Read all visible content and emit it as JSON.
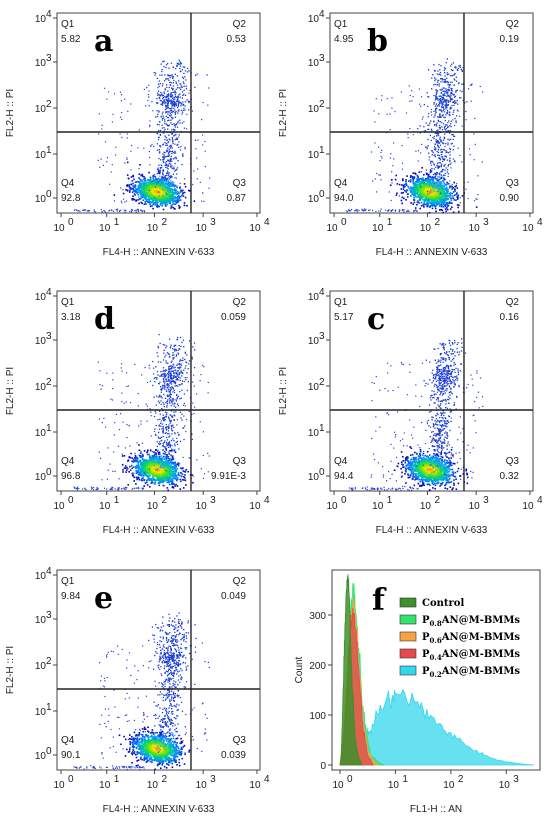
{
  "chart_data": [
    {
      "type": "scatter",
      "letter": "a",
      "xlabel": "FL4-H :: ANNEXIN V-633",
      "ylabel": "FL2-H :: PI",
      "x_ticks": [
        "0",
        "1",
        "2",
        "3",
        "4"
      ],
      "y_ticks": [
        "0",
        "1",
        "2",
        "3",
        "4"
      ],
      "quadrants": [
        {
          "name": "Q1",
          "value": "5.82"
        },
        {
          "name": "Q2",
          "value": "0.53"
        },
        {
          "name": "Q3",
          "value": "0.87"
        },
        {
          "name": "Q4",
          "value": "92.8"
        }
      ]
    },
    {
      "type": "scatter",
      "letter": "b",
      "xlabel": "FL4-H :: ANNEXIN V-633",
      "ylabel": "FL2-H :: PI",
      "x_ticks": [
        "0",
        "1",
        "2",
        "3",
        "4"
      ],
      "y_ticks": [
        "0",
        "1",
        "2",
        "3",
        "4"
      ],
      "quadrants": [
        {
          "name": "Q1",
          "value": "4.95"
        },
        {
          "name": "Q2",
          "value": "0.19"
        },
        {
          "name": "Q3",
          "value": "0.90"
        },
        {
          "name": "Q4",
          "value": "94.0"
        }
      ]
    },
    {
      "type": "scatter",
      "letter": "d",
      "xlabel": "FL4-H :: ANNEXIN V-633",
      "ylabel": "FL2-H :: PI",
      "x_ticks": [
        "0",
        "1",
        "2",
        "3",
        "4"
      ],
      "y_ticks": [
        "0",
        "1",
        "2",
        "3",
        "4"
      ],
      "quadrants": [
        {
          "name": "Q1",
          "value": "3.18"
        },
        {
          "name": "Q2",
          "value": "0.059"
        },
        {
          "name": "Q3",
          "value": "9.91E-3"
        },
        {
          "name": "Q4",
          "value": "96.8"
        }
      ]
    },
    {
      "type": "scatter",
      "letter": "c",
      "xlabel": "FL4-H :: ANNEXIN V-633",
      "ylabel": "FL2-H :: PI",
      "x_ticks": [
        "0",
        "1",
        "2",
        "3",
        "4"
      ],
      "y_ticks": [
        "0",
        "1",
        "2",
        "3",
        "4"
      ],
      "quadrants": [
        {
          "name": "Q1",
          "value": "5.17"
        },
        {
          "name": "Q2",
          "value": "0.16"
        },
        {
          "name": "Q3",
          "value": "0.32"
        },
        {
          "name": "Q4",
          "value": "94.4"
        }
      ]
    },
    {
      "type": "scatter",
      "letter": "e",
      "xlabel": "FL4-H :: ANNEXIN V-633",
      "ylabel": "FL2-H :: PI",
      "x_ticks": [
        "0",
        "1",
        "2",
        "3",
        "4"
      ],
      "y_ticks": [
        "0",
        "1",
        "2",
        "3",
        "4"
      ],
      "quadrants": [
        {
          "name": "Q1",
          "value": "9.84"
        },
        {
          "name": "Q2",
          "value": "0.049"
        },
        {
          "name": "Q3",
          "value": "0.039"
        },
        {
          "name": "Q4",
          "value": "90.1"
        }
      ]
    },
    {
      "type": "area",
      "letter": "f",
      "xlabel": "FL1-H :: AN",
      "ylabel": "Count",
      "x_ticks": [
        "0",
        "1",
        "2",
        "3"
      ],
      "y_ticks": [
        0,
        100,
        200,
        300
      ],
      "ylim": [
        0,
        380
      ],
      "xlim": [
        0,
        3.5
      ],
      "legend_position": "top-right",
      "series": [
        {
          "name": "Control",
          "sub": "",
          "name_tail": "",
          "color": "#3f8f2a",
          "peak": 0.13,
          "values": [
            [
              0,
              0
            ],
            [
              0.02,
              20
            ],
            [
              0.05,
              120
            ],
            [
              0.08,
              250
            ],
            [
              0.1,
              300
            ],
            [
              0.12,
              360
            ],
            [
              0.14,
              375
            ],
            [
              0.16,
              355
            ],
            [
              0.18,
              300
            ],
            [
              0.2,
              220
            ],
            [
              0.24,
              120
            ],
            [
              0.28,
              50
            ],
            [
              0.34,
              15
            ],
            [
              0.4,
              0
            ]
          ]
        },
        {
          "name": "P",
          "sub": "0.8",
          "name_tail": "AN@M-BMMs",
          "color": "#33e36a",
          "values": [
            [
              0,
              0
            ],
            [
              0.05,
              40
            ],
            [
              0.1,
              120
            ],
            [
              0.15,
              220
            ],
            [
              0.2,
              300
            ],
            [
              0.22,
              330
            ],
            [
              0.25,
              345
            ],
            [
              0.28,
              320
            ],
            [
              0.32,
              250
            ],
            [
              0.38,
              160
            ],
            [
              0.45,
              80
            ],
            [
              0.55,
              20
            ],
            [
              0.7,
              5
            ],
            [
              0.8,
              0
            ]
          ]
        },
        {
          "name": "P",
          "sub": "0.6",
          "name_tail": "AN@M-BMMs",
          "color": "#f5a442",
          "values": [
            [
              0,
              0
            ],
            [
              0.05,
              30
            ],
            [
              0.1,
              110
            ],
            [
              0.15,
              210
            ],
            [
              0.2,
              290
            ],
            [
              0.23,
              315
            ],
            [
              0.26,
              310
            ],
            [
              0.3,
              270
            ],
            [
              0.36,
              170
            ],
            [
              0.42,
              90
            ],
            [
              0.5,
              30
            ],
            [
              0.6,
              8
            ],
            [
              0.7,
              0
            ]
          ]
        },
        {
          "name": "P",
          "sub": "0.4",
          "name_tail": "AN@M-BMMs",
          "color": "#e5484d",
          "values": [
            [
              0,
              0
            ],
            [
              0.05,
              25
            ],
            [
              0.1,
              100
            ],
            [
              0.15,
              200
            ],
            [
              0.2,
              280
            ],
            [
              0.23,
              305
            ],
            [
              0.26,
              300
            ],
            [
              0.3,
              250
            ],
            [
              0.36,
              150
            ],
            [
              0.42,
              70
            ],
            [
              0.5,
              20
            ],
            [
              0.6,
              0
            ]
          ]
        },
        {
          "name": "P",
          "sub": "0.2",
          "name_tail": "AN@M-BMMs",
          "color": "#34d7ea",
          "values": [
            [
              0,
              0
            ],
            [
              0.05,
              25
            ],
            [
              0.1,
              90
            ],
            [
              0.15,
              190
            ],
            [
              0.2,
              270
            ],
            [
              0.24,
              300
            ],
            [
              0.28,
              270
            ],
            [
              0.34,
              160
            ],
            [
              0.4,
              90
            ],
            [
              0.5,
              60
            ],
            [
              0.6,
              80
            ],
            [
              0.75,
              120
            ],
            [
              0.9,
              140
            ],
            [
              1.0,
              150
            ],
            [
              1.2,
              140
            ],
            [
              1.4,
              120
            ],
            [
              1.6,
              100
            ],
            [
              1.8,
              80
            ],
            [
              2.0,
              60
            ],
            [
              2.2,
              45
            ],
            [
              2.4,
              30
            ],
            [
              2.6,
              20
            ],
            [
              2.8,
              12
            ],
            [
              3.0,
              6
            ],
            [
              3.2,
              3
            ],
            [
              3.5,
              0
            ]
          ]
        }
      ]
    }
  ]
}
